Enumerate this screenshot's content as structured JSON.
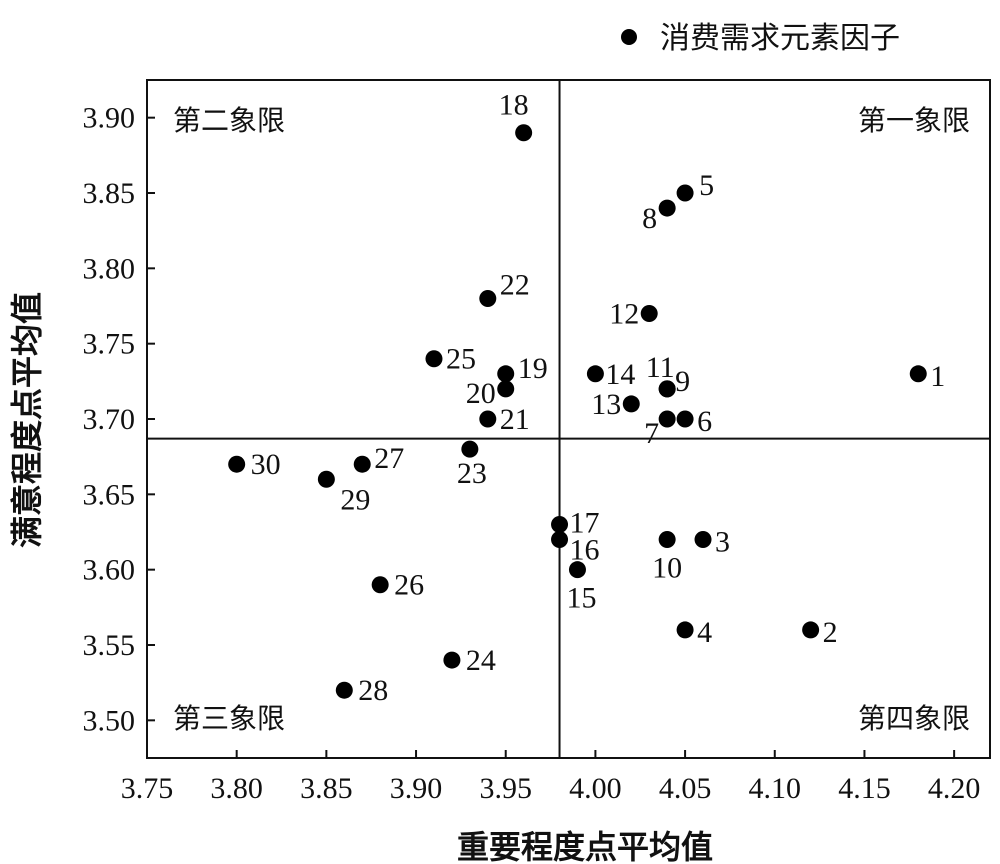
{
  "chart_data": {
    "type": "scatter",
    "title": "",
    "xlabel": "重要程度点平均值",
    "ylabel": "满意程度点平均值",
    "xlim": [
      3.75,
      4.22
    ],
    "ylim": [
      3.475,
      3.925
    ],
    "xticks": [
      "3.75",
      "3.80",
      "3.85",
      "3.90",
      "3.95",
      "4.00",
      "4.05",
      "4.10",
      "4.15",
      "4.20"
    ],
    "yticks": [
      "3.50",
      "3.55",
      "3.60",
      "3.65",
      "3.70",
      "3.75",
      "3.80",
      "3.85",
      "3.90"
    ],
    "legend": {
      "label": "消费需求元素因子",
      "placement": "top-right"
    },
    "quadrant_lines": {
      "x": 3.98,
      "y": 3.687
    },
    "quadrant_labels": [
      "第一象限",
      "第二象限",
      "第三象限",
      "第四象限"
    ],
    "grid": false,
    "series": [
      {
        "name": "消费需求元素因子",
        "points": [
          {
            "id": "1",
            "x": 4.18,
            "y": 3.73
          },
          {
            "id": "2",
            "x": 4.12,
            "y": 3.56
          },
          {
            "id": "3",
            "x": 4.06,
            "y": 3.62
          },
          {
            "id": "4",
            "x": 4.05,
            "y": 3.56
          },
          {
            "id": "5",
            "x": 4.05,
            "y": 3.85
          },
          {
            "id": "6",
            "x": 4.05,
            "y": 3.7
          },
          {
            "id": "7",
            "x": 4.04,
            "y": 3.7
          },
          {
            "id": "8",
            "x": 4.04,
            "y": 3.84
          },
          {
            "id": "9",
            "x": 4.04,
            "y": 3.72
          },
          {
            "id": "10",
            "x": 4.04,
            "y": 3.62
          },
          {
            "id": "11",
            "x": 4.04,
            "y": 3.72
          },
          {
            "id": "12",
            "x": 4.03,
            "y": 3.77
          },
          {
            "id": "13",
            "x": 4.02,
            "y": 3.71
          },
          {
            "id": "14",
            "x": 4.0,
            "y": 3.73
          },
          {
            "id": "15",
            "x": 3.99,
            "y": 3.6
          },
          {
            "id": "16",
            "x": 3.98,
            "y": 3.62
          },
          {
            "id": "17",
            "x": 3.98,
            "y": 3.63
          },
          {
            "id": "18",
            "x": 3.96,
            "y": 3.89
          },
          {
            "id": "19",
            "x": 3.95,
            "y": 3.73
          },
          {
            "id": "20",
            "x": 3.95,
            "y": 3.72
          },
          {
            "id": "21",
            "x": 3.94,
            "y": 3.7
          },
          {
            "id": "22",
            "x": 3.94,
            "y": 3.78
          },
          {
            "id": "23",
            "x": 3.93,
            "y": 3.68
          },
          {
            "id": "24",
            "x": 3.92,
            "y": 3.54
          },
          {
            "id": "25",
            "x": 3.91,
            "y": 3.74
          },
          {
            "id": "26",
            "x": 3.88,
            "y": 3.59
          },
          {
            "id": "27",
            "x": 3.87,
            "y": 3.67
          },
          {
            "id": "28",
            "x": 3.86,
            "y": 3.52
          },
          {
            "id": "29",
            "x": 3.85,
            "y": 3.66
          },
          {
            "id": "30",
            "x": 3.8,
            "y": 3.67
          }
        ]
      }
    ],
    "colors": {
      "marker": "#000000"
    }
  }
}
